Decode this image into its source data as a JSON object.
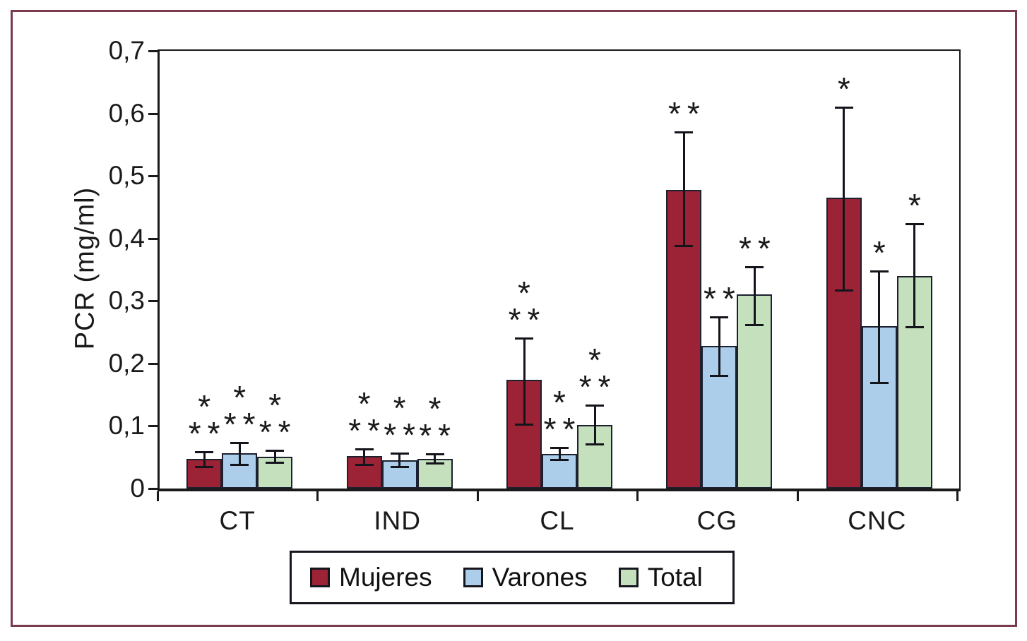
{
  "figure": {
    "frame_color": "#7A3B4C",
    "axis_color": "#1A1A1A",
    "background": "#FFFFFF"
  },
  "chart_data": {
    "type": "bar",
    "title": "",
    "xlabel": "",
    "ylabel": "PCR (mg/ml)",
    "categories": [
      "CT",
      "IND",
      "CL",
      "CG",
      "CNC"
    ],
    "ylim": [
      0,
      0.7
    ],
    "ytick_step": 0.1,
    "ytick_labels": [
      "0",
      "0,1",
      "0,2",
      "0,3",
      "0,4",
      "0,5",
      "0,6",
      "0,7"
    ],
    "decimal_separator": ",",
    "grid": false,
    "legend_position": "bottom",
    "error_bars": true,
    "series": [
      {
        "name": "Mujeres",
        "color": "#9C2335",
        "values": [
          0.048,
          0.052,
          0.174,
          0.478,
          0.465
        ],
        "err_hi": [
          0.057,
          0.061,
          0.238,
          0.568,
          0.608
        ],
        "err_lo": [
          0.036,
          0.04,
          0.104,
          0.39,
          0.318
        ],
        "annotations": [
          [
            "*",
            "**"
          ],
          [
            "*",
            "**"
          ],
          [
            "*",
            "**"
          ],
          [
            "**"
          ],
          [
            "*"
          ]
        ]
      },
      {
        "name": "Varones",
        "color": "#ACCEEA",
        "values": [
          0.056,
          0.045,
          0.055,
          0.228,
          0.26
        ],
        "err_hi": [
          0.071,
          0.054,
          0.063,
          0.272,
          0.346
        ],
        "err_lo": [
          0.04,
          0.036,
          0.047,
          0.182,
          0.17
        ],
        "annotations": [
          [
            "*",
            "**"
          ],
          [
            "*",
            "**"
          ],
          [
            "*",
            "**"
          ],
          [
            "**"
          ],
          [
            "*"
          ]
        ]
      },
      {
        "name": "Total",
        "color": "#C5E0BC",
        "values": [
          0.051,
          0.048,
          0.102,
          0.31,
          0.34
        ],
        "err_hi": [
          0.059,
          0.053,
          0.131,
          0.352,
          0.421
        ],
        "err_lo": [
          0.043,
          0.042,
          0.072,
          0.263,
          0.26
        ],
        "annotations": [
          [
            "*",
            "**"
          ],
          [
            "*",
            "**"
          ],
          [
            "*",
            "**"
          ],
          [
            "**"
          ],
          [
            "*"
          ]
        ]
      }
    ]
  }
}
